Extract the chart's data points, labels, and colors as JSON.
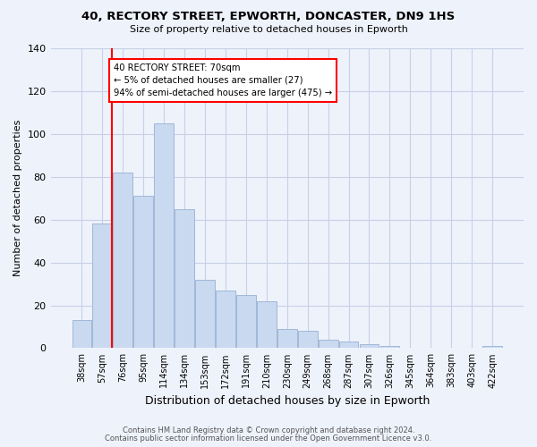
{
  "title1": "40, RECTORY STREET, EPWORTH, DONCASTER, DN9 1HS",
  "title2": "Size of property relative to detached houses in Epworth",
  "xlabel": "Distribution of detached houses by size in Epworth",
  "ylabel": "Number of detached properties",
  "categories": [
    "38sqm",
    "57sqm",
    "76sqm",
    "95sqm",
    "114sqm",
    "134sqm",
    "153sqm",
    "172sqm",
    "191sqm",
    "210sqm",
    "230sqm",
    "249sqm",
    "268sqm",
    "287sqm",
    "307sqm",
    "326sqm",
    "345sqm",
    "364sqm",
    "383sqm",
    "403sqm",
    "422sqm"
  ],
  "values": [
    13,
    58,
    82,
    71,
    105,
    65,
    32,
    27,
    25,
    22,
    9,
    8,
    4,
    3,
    2,
    1,
    0,
    0,
    0,
    0,
    1
  ],
  "bar_color": "#c9d9f0",
  "bar_edge_color": "#a0b8d8",
  "annotation_text": "40 RECTORY STREET: 70sqm\n← 5% of detached houses are smaller (27)\n94% of semi-detached houses are larger (475) →",
  "annotation_box_color": "white",
  "annotation_box_edge": "red",
  "marker_line_color": "red",
  "bg_color": "#eef2fb",
  "grid_color": "#c8d0e8",
  "ylim": [
    0,
    140
  ],
  "yticks": [
    0,
    20,
    40,
    60,
    80,
    100,
    120,
    140
  ],
  "footnote1": "Contains HM Land Registry data © Crown copyright and database right 2024.",
  "footnote2": "Contains public sector information licensed under the Open Government Licence v3.0."
}
